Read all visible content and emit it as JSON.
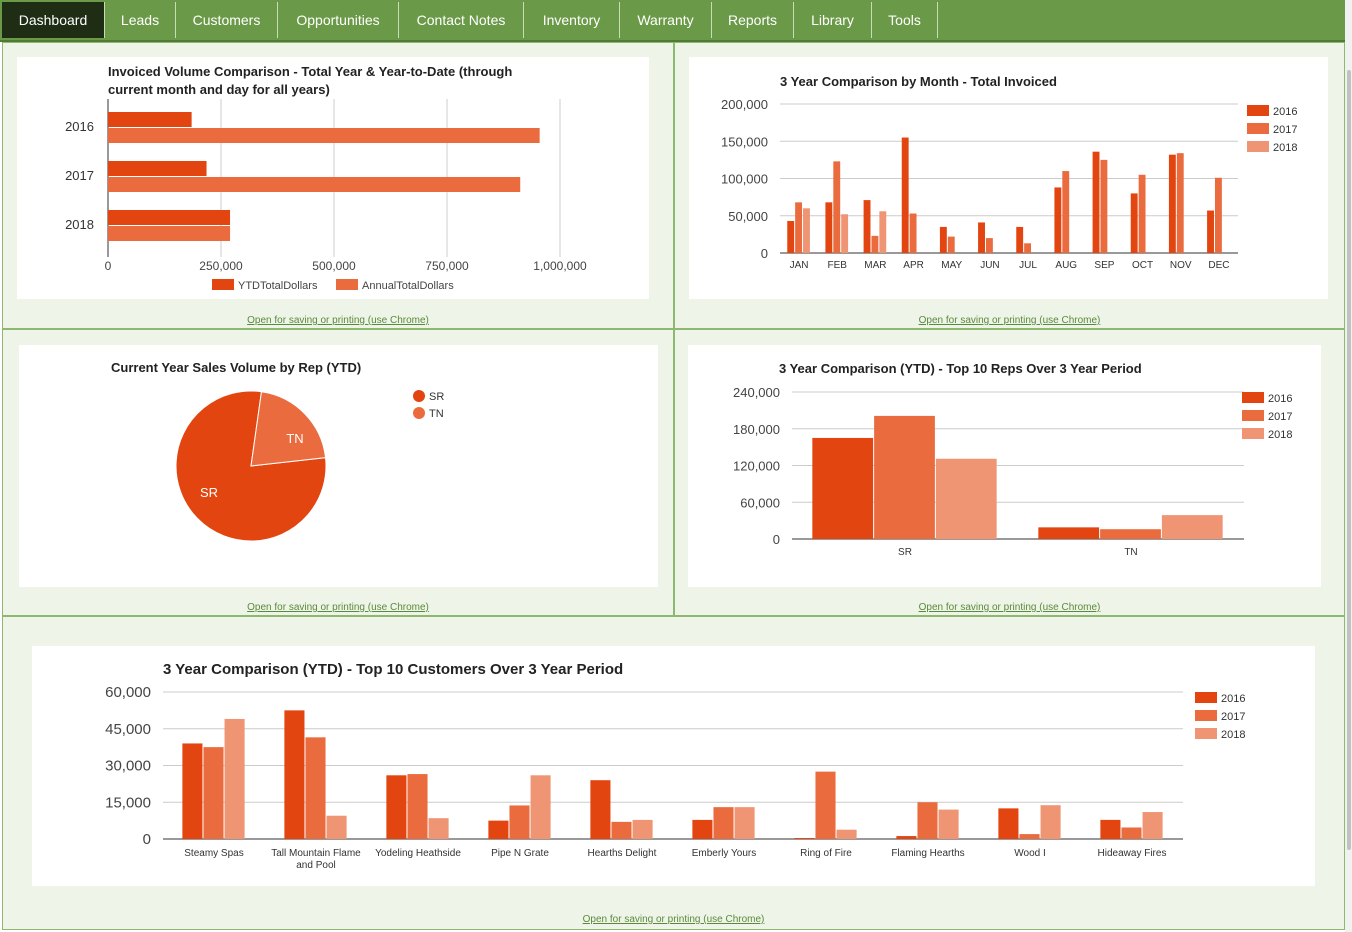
{
  "nav": {
    "tabs": [
      {
        "label": "Dashboard",
        "active": true
      },
      {
        "label": "Leads"
      },
      {
        "label": "Customers"
      },
      {
        "label": "Opportunities"
      },
      {
        "label": "Contact Notes"
      },
      {
        "label": "Inventory"
      },
      {
        "label": "Warranty"
      },
      {
        "label": "Reports"
      },
      {
        "label": "Library"
      },
      {
        "label": "Tools"
      }
    ]
  },
  "colors": {
    "s2016": "#e2450f",
    "s2017": "#ea6c3e",
    "s2018": "#ef9574",
    "nav": "#6a9a48",
    "nav_active": "#1e2d13"
  },
  "open_link_text": "Open for saving or printing (use Chrome)",
  "chart_data": [
    {
      "id": "invoiced_volume",
      "type": "bar",
      "orientation": "horizontal",
      "title_lines": [
        "Invoiced Volume Comparison - Total Year & Year-to-Date (through",
        "current month and day for all years)"
      ],
      "categories": [
        "2016",
        "2017",
        "2018"
      ],
      "series": [
        {
          "name": "YTDTotalDollars",
          "values": [
            185000,
            218000,
            270000
          ]
        },
        {
          "name": "AnnualTotalDollars",
          "values": [
            955000,
            912000,
            270000
          ]
        }
      ],
      "xlim": [
        0,
        1000000
      ],
      "ticks": [
        0,
        250000,
        500000,
        750000,
        1000000
      ],
      "tick_labels": [
        "0",
        "250,000",
        "500,000",
        "750,000",
        "1,000,000"
      ],
      "legend": "bottom"
    },
    {
      "id": "monthly_comparison",
      "type": "bar",
      "title": "3 Year Comparison by Month - Total Invoiced",
      "categories": [
        "JAN",
        "FEB",
        "MAR",
        "APR",
        "MAY",
        "JUN",
        "JUL",
        "AUG",
        "SEP",
        "OCT",
        "NOV",
        "DEC"
      ],
      "series": [
        {
          "name": "2016",
          "values": [
            43000,
            68000,
            71000,
            155000,
            35000,
            41000,
            35000,
            88000,
            136000,
            80000,
            132000,
            57000
          ]
        },
        {
          "name": "2017",
          "values": [
            68000,
            123000,
            23000,
            53000,
            22000,
            20000,
            13000,
            110000,
            125000,
            105000,
            134000,
            101000
          ]
        },
        {
          "name": "2018",
          "values": [
            60000,
            52000,
            56000,
            0,
            0,
            0,
            0,
            0,
            0,
            0,
            0,
            0
          ]
        }
      ],
      "ylim": [
        0,
        200000
      ],
      "ticks": [
        0,
        50000,
        100000,
        150000,
        200000
      ],
      "tick_labels": [
        "0",
        "50,000",
        "100,000",
        "150,000",
        "200,000"
      ],
      "legend": "right"
    },
    {
      "id": "sales_by_rep",
      "type": "pie",
      "title": "Current Year Sales Volume by Rep (YTD)",
      "slices": [
        {
          "label": "SR",
          "value": 79
        },
        {
          "label": "TN",
          "value": 21
        }
      ],
      "legend": "right"
    },
    {
      "id": "top_reps",
      "type": "bar",
      "title": "3 Year Comparison (YTD) - Top 10 Reps Over 3 Year Period",
      "categories": [
        "SR",
        "TN"
      ],
      "series": [
        {
          "name": "2016",
          "values": [
            165000,
            19000
          ]
        },
        {
          "name": "2017",
          "values": [
            201000,
            16000
          ]
        },
        {
          "name": "2018",
          "values": [
            131000,
            39000
          ]
        }
      ],
      "ylim": [
        0,
        240000
      ],
      "ticks": [
        0,
        60000,
        120000,
        180000,
        240000
      ],
      "tick_labels": [
        "0",
        "60,000",
        "120,000",
        "180,000",
        "240,000"
      ],
      "legend": "right"
    },
    {
      "id": "top_customers",
      "type": "bar",
      "title": "3 Year Comparison (YTD) - Top 10 Customers Over 3 Year Period",
      "categories": [
        "Steamy Spas",
        [
          "Tall Mountain Flame",
          "and Pool"
        ],
        "Yodeling Heathside",
        "Pipe N Grate",
        "Hearths Delight",
        "Emberly Yours",
        "Ring of Fire",
        "Flaming Hearths",
        "Wood I",
        "Hideaway Fires"
      ],
      "series": [
        {
          "name": "2016",
          "values": [
            39000,
            52500,
            26000,
            7500,
            24000,
            7800,
            400,
            1200,
            12500,
            7800
          ]
        },
        {
          "name": "2017",
          "values": [
            37500,
            41500,
            26500,
            13700,
            7000,
            13000,
            27500,
            15000,
            2000,
            4700
          ]
        },
        {
          "name": "2018",
          "values": [
            49000,
            9500,
            8500,
            26000,
            7800,
            13000,
            3800,
            12000,
            13800,
            11000
          ]
        }
      ],
      "ylim": [
        0,
        60000
      ],
      "ticks": [
        0,
        15000,
        30000,
        45000,
        60000
      ],
      "tick_labels": [
        "0",
        "15,000",
        "30,000",
        "45,000",
        "60,000"
      ],
      "legend": "right"
    }
  ]
}
